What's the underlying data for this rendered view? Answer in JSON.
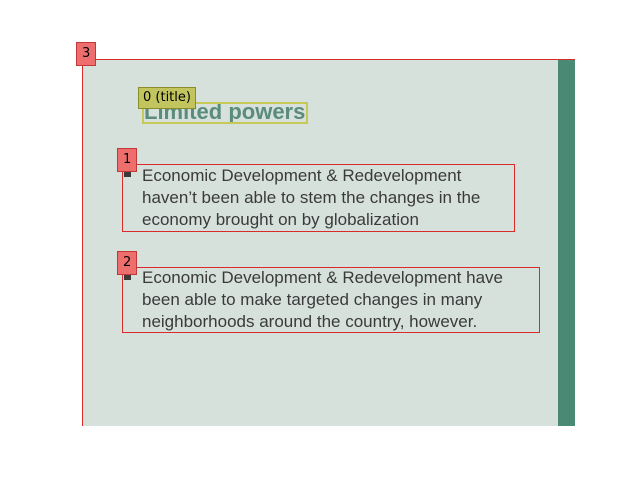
{
  "slide": {
    "title": "Limited powers",
    "bullets": [
      {
        "lines": [
          "Economic Development & Redevelopment",
          "haven’t been able to stem the changes in the",
          "economy brought on by globalization"
        ]
      },
      {
        "lines": [
          "Economic Development & Redevelopment have",
          "been able to make targeted changes in many",
          "neighborhoods around the country, however."
        ]
      }
    ]
  },
  "annotations": {
    "title_tag": "0 (title)",
    "bullet1_tag": "1",
    "bullet2_tag": "2",
    "slide_tag": "3"
  },
  "colors": {
    "slide_background": "#d6e1dc",
    "accent_stripe": "#4a8a74",
    "title_text": "#5b8b7c",
    "title_annotation": "#c2c45e",
    "region_annotation": "#ee6e6e",
    "region_border": "#d92b2b"
  }
}
